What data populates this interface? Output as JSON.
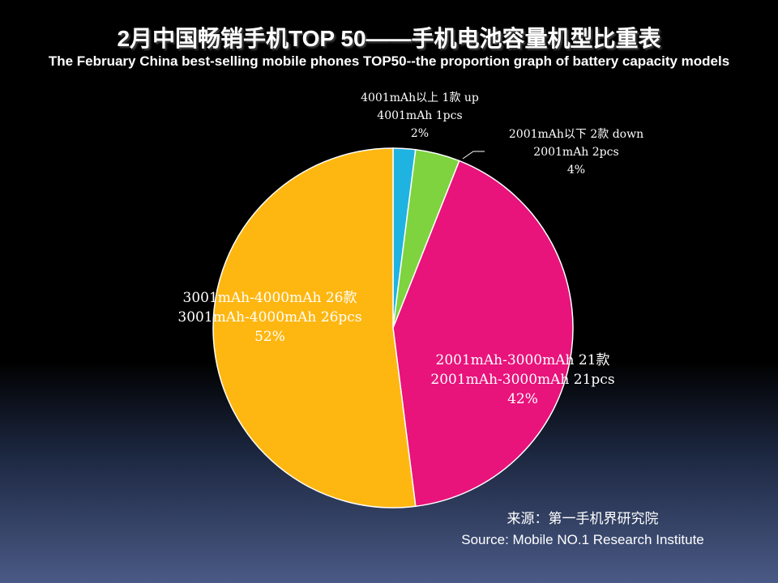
{
  "title": "2月中国畅销手机TOP 50——手机电池容量机型比重表",
  "subtitle": "The  February China best-selling mobile phones TOP50--the proportion graph of battery capacity models",
  "source": {
    "line1": "来源：第一手机界研究院",
    "line2": "Source: Mobile NO.1 Research Institute"
  },
  "chart_data": {
    "type": "pie",
    "slices": [
      {
        "line1": "4001mAh以上 1款 up",
        "line2": "4001mAh 1pcs",
        "percent_label": "2%",
        "value": 1,
        "color": "#1fb3e2"
      },
      {
        "line1": "2001mAh以下 2款 down",
        "line2": "2001mAh 2pcs",
        "percent_label": "4%",
        "value": 2,
        "color": "#7ed33e"
      },
      {
        "line1": "2001mAh-3000mAh 21款",
        "line2": "2001mAh-3000mAh 21pcs",
        "percent_label": "42%",
        "value": 21,
        "color": "#e8137b"
      },
      {
        "line1": "3001mAh-4000mAh 26款",
        "line2": "3001mAh-4000mAh 26pcs",
        "percent_label": "52%",
        "value": 26,
        "color": "#feb711"
      }
    ]
  }
}
